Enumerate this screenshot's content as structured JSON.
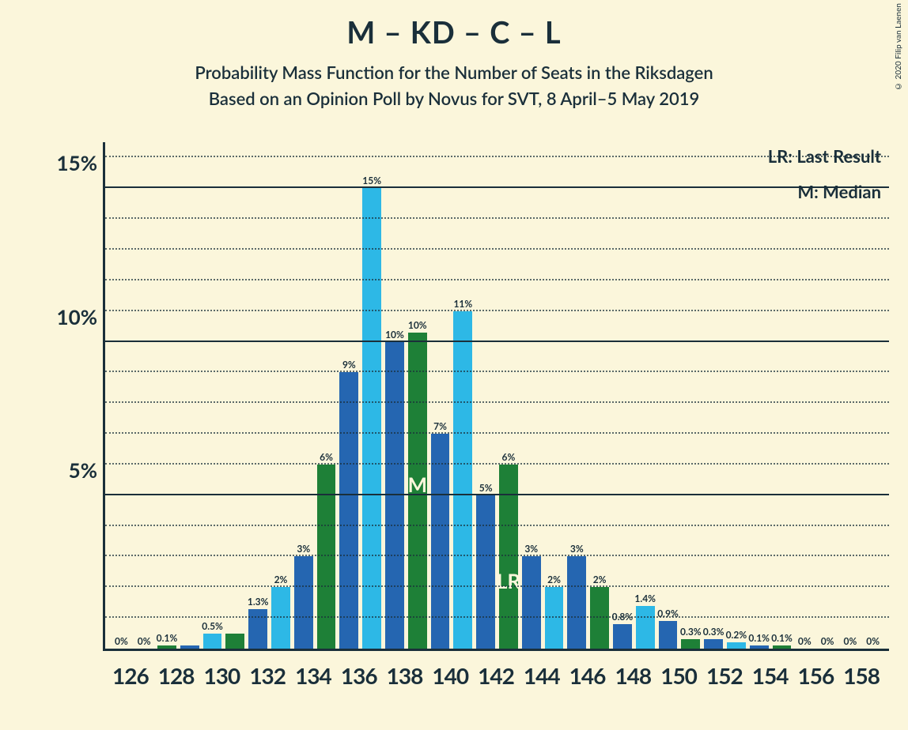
{
  "copyright": "© 2020 Filip van Laenen",
  "title": "M – KD – C – L",
  "subtitle1": "Probability Mass Function for the Number of Seats in the Riksdagen",
  "subtitle2": "Based on an Opinion Poll by Novus for SVT, 8 April–5 May 2019",
  "legend": {
    "lr": "LR: Last Result",
    "m": "M: Median"
  },
  "chart": {
    "type": "bar",
    "background_color": "#fbf6db",
    "axis_color": "#1a2f3a",
    "grid_major_color": "#1a2f3a",
    "grid_minor_color": "#1a2f3a",
    "ymax": 16.5,
    "y_major_ticks": [
      5,
      10,
      15
    ],
    "y_major_labels": [
      "5%",
      "10%",
      "15%"
    ],
    "y_minor_step": 1,
    "colors": [
      "#2566b1",
      "#2db8e6",
      "#1e8037"
    ],
    "bars": [
      {
        "value": 0,
        "label": "0%",
        "color_idx": 0
      },
      {
        "value": 0,
        "label": "0%",
        "color_idx": 1
      },
      {
        "value": 0.1,
        "label": "0.1%",
        "color_idx": 2
      },
      {
        "value": 0.1,
        "label": "",
        "color_idx": 0
      },
      {
        "value": 0.5,
        "label": "0.5%",
        "color_idx": 1
      },
      {
        "value": 0.5,
        "label": "",
        "color_idx": 2
      },
      {
        "value": 1.3,
        "label": "1.3%",
        "color_idx": 0
      },
      {
        "value": 2,
        "label": "2%",
        "color_idx": 1
      },
      {
        "value": 3,
        "label": "3%",
        "color_idx": 0
      },
      {
        "value": 6,
        "label": "6%",
        "color_idx": 2
      },
      {
        "value": 9,
        "label": "9%",
        "color_idx": 0
      },
      {
        "value": 15,
        "label": "15%",
        "color_idx": 1
      },
      {
        "value": 10,
        "label": "10%",
        "color_idx": 0
      },
      {
        "value": 10.3,
        "label": "10%",
        "color_idx": 2,
        "marker": "M",
        "marker_pos_pct": 30
      },
      {
        "value": 7,
        "label": "7%",
        "color_idx": 0
      },
      {
        "value": 11,
        "label": "11%",
        "color_idx": 1
      },
      {
        "value": 5,
        "label": "5%",
        "color_idx": 0
      },
      {
        "value": 6,
        "label": "6%",
        "color_idx": 2,
        "marker": "LR",
        "marker_pos_pct": 11
      },
      {
        "value": 3,
        "label": "3%",
        "color_idx": 0
      },
      {
        "value": 2,
        "label": "2%",
        "color_idx": 1
      },
      {
        "value": 3,
        "label": "3%",
        "color_idx": 0
      },
      {
        "value": 2,
        "label": "2%",
        "color_idx": 2
      },
      {
        "value": 0.8,
        "label": "0.8%",
        "color_idx": 0
      },
      {
        "value": 1.4,
        "label": "1.4%",
        "color_idx": 1
      },
      {
        "value": 0.9,
        "label": "0.9%",
        "color_idx": 0
      },
      {
        "value": 0.3,
        "label": "0.3%",
        "color_idx": 2
      },
      {
        "value": 0.3,
        "label": "0.3%",
        "color_idx": 0
      },
      {
        "value": 0.2,
        "label": "0.2%",
        "color_idx": 1
      },
      {
        "value": 0.1,
        "label": "0.1%",
        "color_idx": 0
      },
      {
        "value": 0.1,
        "label": "0.1%",
        "color_idx": 2
      },
      {
        "value": 0,
        "label": "0%",
        "color_idx": 0
      },
      {
        "value": 0,
        "label": "0%",
        "color_idx": 1
      },
      {
        "value": 0,
        "label": "0%",
        "color_idx": 0
      },
      {
        "value": 0,
        "label": "0%",
        "color_idx": 2
      }
    ],
    "x_tick_labels": [
      "126",
      "128",
      "130",
      "132",
      "134",
      "136",
      "138",
      "140",
      "142",
      "144",
      "146",
      "148",
      "150",
      "152",
      "154",
      "156",
      "158"
    ],
    "title_fontsize": 38,
    "subtitle_fontsize": 22,
    "ylabel_fontsize": 26,
    "xlabel_fontsize": 28,
    "barlabel_fontsize": 12
  }
}
